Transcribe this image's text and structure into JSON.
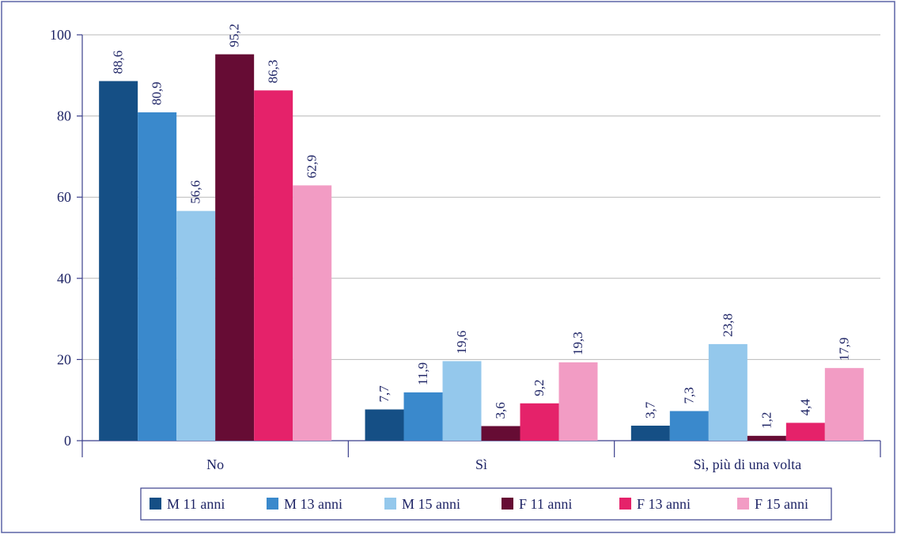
{
  "chart_data": {
    "type": "bar",
    "title": "",
    "xlabel": "",
    "ylabel": "",
    "ylim": [
      0,
      100
    ],
    "yticks": [
      0,
      20,
      40,
      60,
      80,
      100
    ],
    "grid": true,
    "legend_position": "bottom",
    "categories": [
      "No",
      "Sì",
      "Sì, più di una volta"
    ],
    "series": [
      {
        "name": "M 11 anni",
        "color": "#154f85",
        "values": [
          88.6,
          7.7,
          3.7
        ],
        "labels": [
          "88,6",
          "7,7",
          "3,7"
        ]
      },
      {
        "name": "M 13 anni",
        "color": "#3a89cc",
        "values": [
          80.9,
          11.9,
          7.3
        ],
        "labels": [
          "80,9",
          "11,9",
          "7,3"
        ]
      },
      {
        "name": "M 15 anni",
        "color": "#94c8ec",
        "values": [
          56.6,
          19.6,
          23.8
        ],
        "labels": [
          "56,6",
          "19,6",
          "23,8"
        ]
      },
      {
        "name": "F 11 anni",
        "color": "#660c34",
        "values": [
          95.2,
          3.6,
          1.2
        ],
        "labels": [
          "95,2",
          "3,6",
          "1,2"
        ]
      },
      {
        "name": "F 13 anni",
        "color": "#e5226a",
        "values": [
          86.3,
          9.2,
          4.4
        ],
        "labels": [
          "86,3",
          "9,2",
          "4,4"
        ]
      },
      {
        "name": "F 15 anni",
        "color": "#f29cc4",
        "values": [
          62.9,
          19.3,
          17.9
        ],
        "labels": [
          "62,9",
          "19,3",
          "17,9"
        ]
      }
    ]
  },
  "colors": {
    "frame": "#5b63a6",
    "axis": "#3b3f8c",
    "grid": "#b9b9b9",
    "text": "#1f2566"
  }
}
